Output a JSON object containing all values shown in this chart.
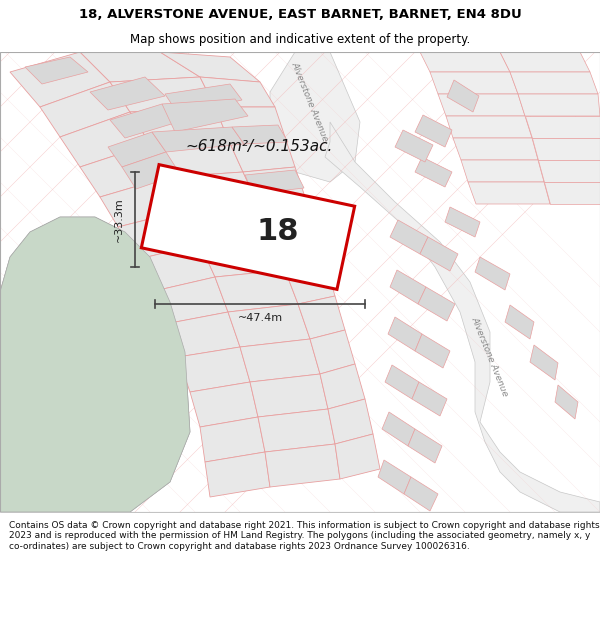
{
  "title_line1": "18, ALVERSTONE AVENUE, EAST BARNET, BARNET, EN4 8DU",
  "title_line2": "Map shows position and indicative extent of the property.",
  "footer_text": "Contains OS data © Crown copyright and database right 2021. This information is subject to Crown copyright and database rights 2023 and is reproduced with the permission of HM Land Registry. The polygons (including the associated geometry, namely x, y co-ordinates) are subject to Crown copyright and database rights 2023 Ordnance Survey 100026316.",
  "property_number": "18",
  "area_text": "~618m²/~0.153ac.",
  "width_label": "~47.4m",
  "height_label": "~33.3m",
  "map_bg": "#ffffff",
  "parcel_fill": "#e8e8e8",
  "parcel_line": "#e8a0a0",
  "plot_fill": "#ffffff",
  "plot_border": "#cc0000",
  "green_fill": "#c8d8c8",
  "road_fill": "#ffffff",
  "road_line": "#c8c8c8"
}
